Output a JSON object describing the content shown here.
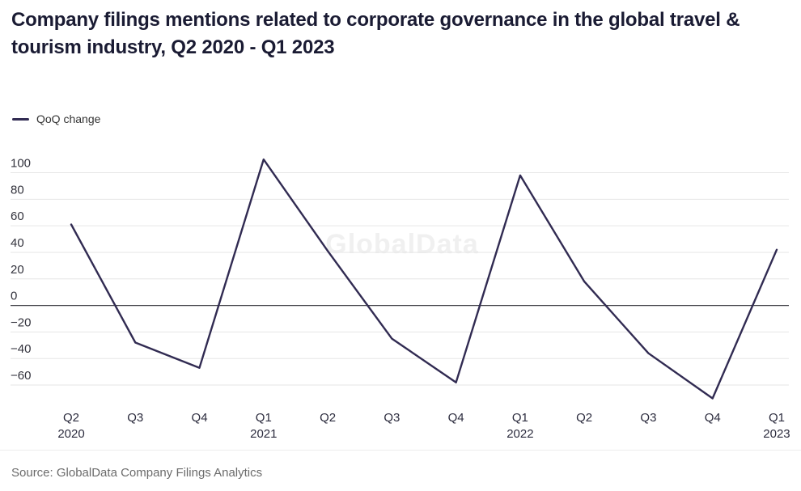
{
  "title": "Company filings mentions related to corporate governance in the global travel & tourism industry, Q2 2020 - Q1 2023",
  "legend": {
    "label": "QoQ change"
  },
  "watermark": "GlobalData",
  "source": "Source: GlobalData Company Filings Analytics",
  "colors": {
    "line": "#312b52",
    "grid": "#e6e6e6",
    "zero_line": "#3f3f46",
    "title": "#1a1b33",
    "y_axis_label": "#33333d",
    "x_axis_label": "#2b2b3d",
    "source_text": "#6b6b6b",
    "watermark": "#f0f0f0",
    "background": "#ffffff"
  },
  "chart_data": {
    "type": "line",
    "title": "Company filings mentions related to corporate governance in the global travel & tourism industry, Q2 2020 - Q1 2023",
    "categories": [
      "Q2 2020",
      "Q3 2020",
      "Q4 2020",
      "Q1 2021",
      "Q2 2021",
      "Q3 2021",
      "Q4 2021",
      "Q1 2022",
      "Q2 2022",
      "Q3 2022",
      "Q4 2022",
      "Q1 2023"
    ],
    "x_tick_line1": [
      "Q2",
      "Q3",
      "Q4",
      "Q1",
      "Q2",
      "Q3",
      "Q4",
      "Q1",
      "Q2",
      "Q3",
      "Q4",
      "Q1"
    ],
    "x_tick_line2": [
      "2020",
      "",
      "",
      "2021",
      "",
      "",
      "",
      "2022",
      "",
      "",
      "",
      "2023"
    ],
    "series": [
      {
        "name": "QoQ change",
        "values": [
          61,
          -28,
          -47,
          110,
          41,
          -25,
          -58,
          98,
          18,
          -36,
          -70,
          42
        ]
      }
    ],
    "y_ticks": [
      100,
      80,
      60,
      40,
      20,
      0,
      -20,
      -40,
      -60
    ],
    "y_tick_labels": [
      "100",
      "80",
      "60",
      "40",
      "20",
      "0",
      "−20",
      "−40",
      "−60"
    ],
    "ylim": [
      -73,
      114
    ],
    "xlabel": "",
    "ylabel": "",
    "grid": true,
    "zero_baseline": true,
    "legend_position": "top-left",
    "watermark_text": "GlobalData"
  }
}
